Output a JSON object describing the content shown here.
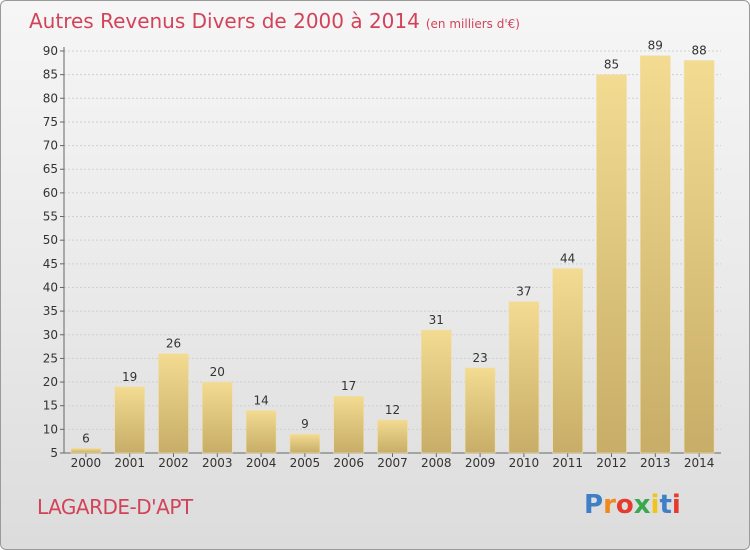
{
  "chart_data": {
    "type": "bar",
    "title": "Autres Revenus Divers de 2000 à 2014",
    "unit": "(en milliers d'€)",
    "categories": [
      "2000",
      "2001",
      "2002",
      "2003",
      "2004",
      "2005",
      "2006",
      "2007",
      "2008",
      "2009",
      "2010",
      "2011",
      "2012",
      "2013",
      "2014"
    ],
    "values": [
      6,
      19,
      26,
      20,
      14,
      9,
      17,
      12,
      31,
      23,
      37,
      44,
      85,
      89,
      88
    ],
    "ylim": [
      5,
      90
    ],
    "yticks": [
      5,
      10,
      15,
      20,
      25,
      30,
      35,
      40,
      45,
      50,
      55,
      60,
      65,
      70,
      75,
      80,
      85,
      90
    ],
    "grid": true,
    "bar_color": "#e8cc7c"
  },
  "location": "LAGARDE-D'APT",
  "logo": {
    "letters": [
      "P",
      "r",
      "o",
      "x",
      "i",
      "t",
      "i"
    ],
    "colors": [
      "#3f7fc6",
      "#f08a1c",
      "#e53a2e",
      "#3aa84f",
      "#f0c419",
      "#3f7fc6",
      "#e53a2e"
    ]
  }
}
